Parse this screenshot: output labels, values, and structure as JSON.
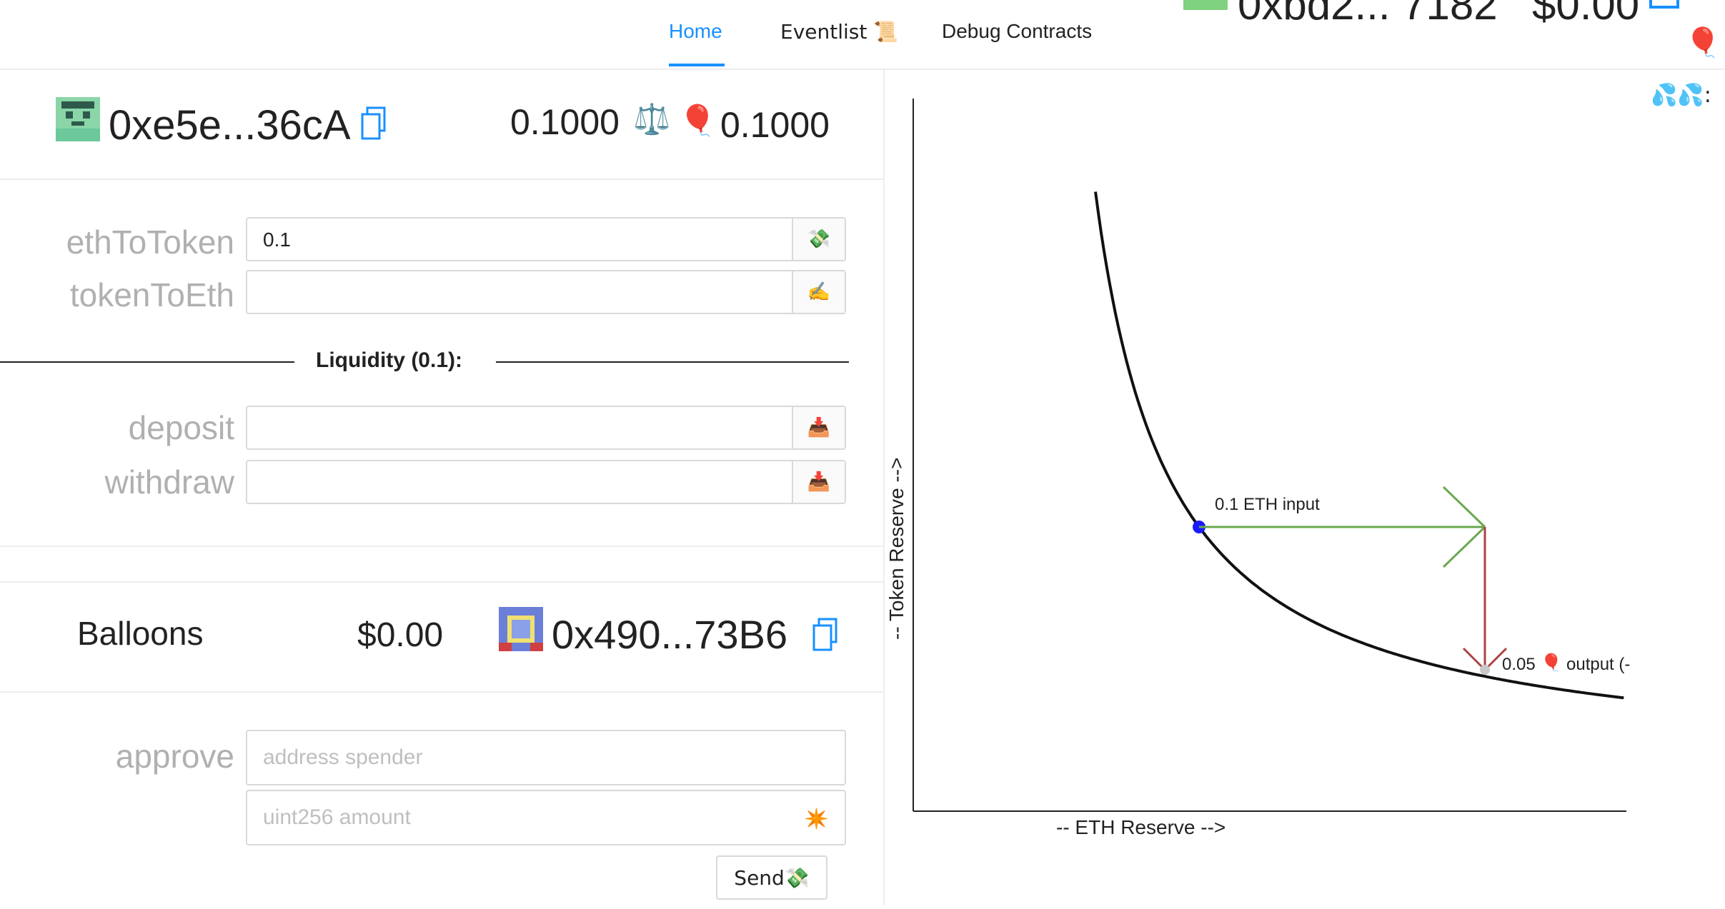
{
  "nav": {
    "tabs": [
      {
        "label": "Home"
      },
      {
        "label": "Eventlist 📜"
      },
      {
        "label": "Debug Contracts"
      }
    ],
    "account_partial": "0xbd2... 7182",
    "balance_partial": "$0.00"
  },
  "top_right": {
    "balloon_emoji": "🎈",
    "splash_label": "💦💦:"
  },
  "wallet": {
    "address": "0xe5e...36cA",
    "eth_balance": "0.1000",
    "scale_emoji": "⚖️",
    "balloon_emoji": "🎈",
    "token_balance": "0.1000"
  },
  "dex_form": {
    "eth_to_token": {
      "label": "ethToToken",
      "value": "0.1",
      "button_icon": "💸"
    },
    "token_to_eth": {
      "label": "tokenToEth",
      "value": "",
      "button_icon": "✍️"
    },
    "liquidity_label": "Liquidity (0.1):",
    "deposit": {
      "label": "deposit",
      "value": "",
      "button_icon": "📥"
    },
    "withdraw": {
      "label": "withdraw",
      "value": "",
      "button_icon": "📥"
    }
  },
  "token": {
    "name": "Balloons",
    "price": "$0.00",
    "address": "0x490...73B6"
  },
  "approve_form": {
    "label": "approve",
    "spender_placeholder": "address spender",
    "amount_placeholder": "uint256 amount",
    "amount_icon": "✴️",
    "send_label": "Send💸"
  },
  "chart_data": {
    "type": "line",
    "title": "",
    "xlabel": "-- ETH Reserve -->",
    "ylabel": "-- Token Reserve -->",
    "curve": "x*y=k",
    "point": {
      "x": 1.0,
      "y": 1.0
    },
    "annotations": [
      {
        "text": "0.1 ETH input",
        "color": "#6aa84f"
      },
      {
        "text": "0.05",
        "emoji": "🎈",
        "suffix": "output (-",
        "color": "#a94442"
      }
    ],
    "grid": false,
    "legend": "none"
  }
}
